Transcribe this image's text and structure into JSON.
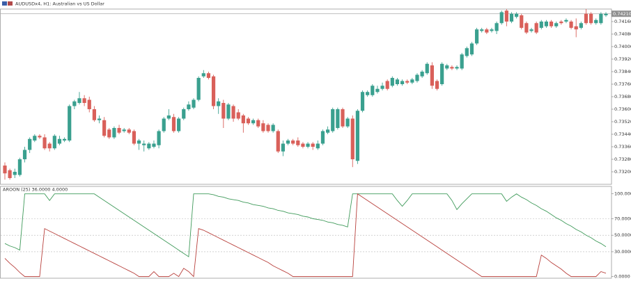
{
  "chart_data": [
    {
      "type": "candlestick",
      "title": "AUDUSDx4, H1:  Australian vs US Dollar",
      "up_color": "#3aa08f",
      "down_color": "#d9605a",
      "ylim": [
        0.7312,
        0.7424
      ],
      "yticks": [
        {
          "value": 0.7416,
          "label": "0.74160"
        },
        {
          "value": 0.7408,
          "label": "0.74080"
        },
        {
          "value": 0.74,
          "label": "0.74000"
        },
        {
          "value": 0.7392,
          "label": "0.73920"
        },
        {
          "value": 0.7384,
          "label": "0.73840"
        },
        {
          "value": 0.7376,
          "label": "0.73760"
        },
        {
          "value": 0.7368,
          "label": "0.73680"
        },
        {
          "value": 0.736,
          "label": "0.73600"
        },
        {
          "value": 0.7352,
          "label": "0.73520"
        },
        {
          "value": 0.7344,
          "label": "0.73440"
        },
        {
          "value": 0.7336,
          "label": "0.73360"
        },
        {
          "value": 0.7328,
          "label": "0.73280"
        },
        {
          "value": 0.732,
          "label": "0.73200"
        }
      ],
      "grid": false,
      "current_price": {
        "value": 0.7421,
        "label": "0.74210"
      },
      "open": [
        0.7324,
        0.7321,
        0.7318,
        0.7318,
        0.7328,
        0.7334,
        0.734,
        0.7343,
        0.7342,
        0.7338,
        0.7335,
        0.7338,
        0.734,
        0.734,
        0.7362,
        0.7364,
        0.7367,
        0.7366,
        0.736,
        0.7353,
        0.7353,
        0.7347,
        0.7342,
        0.7348,
        0.7346,
        0.7347,
        0.7346,
        0.7338,
        0.7337,
        0.7335,
        0.7336,
        0.7337,
        0.7346,
        0.7354,
        0.7355,
        0.7346,
        0.7354,
        0.736,
        0.7361,
        0.7366,
        0.7381,
        0.7383,
        0.7381,
        0.7362,
        0.7364,
        0.7354,
        0.7362,
        0.7358,
        0.7356,
        0.7354,
        0.7351,
        0.7353,
        0.7351,
        0.735,
        0.7346,
        0.7346,
        0.7333,
        0.7338,
        0.734,
        0.734,
        0.7338,
        0.7336,
        0.7338,
        0.7335,
        0.7338,
        0.7345,
        0.7346,
        0.7348,
        0.736,
        0.7349,
        0.7354,
        0.7327,
        0.7359,
        0.7369,
        0.7369,
        0.7371,
        0.7373,
        0.7378,
        0.7375,
        0.7376,
        0.7376,
        0.7378,
        0.7377,
        0.7378,
        0.7381,
        0.7383,
        0.7388,
        0.7378,
        0.7376,
        0.7386,
        0.7387,
        0.7386,
        0.7386,
        0.7394,
        0.7395,
        0.7402,
        0.741,
        0.7411,
        0.741,
        0.741,
        0.7415,
        0.7423,
        0.7416,
        0.7419,
        0.742,
        0.7415,
        0.741,
        0.7415,
        0.7412,
        0.7413,
        0.7416,
        0.7413,
        0.7416,
        0.7416,
        0.7416,
        0.7413,
        0.7412,
        0.7421,
        0.7421,
        0.7415,
        0.7415,
        0.742
      ],
      "high": [
        0.7326,
        0.7322,
        0.7322,
        0.7329,
        0.7336,
        0.7342,
        0.7344,
        0.7344,
        0.7344,
        0.7339,
        0.7344,
        0.7343,
        0.7342,
        0.7363,
        0.7366,
        0.7371,
        0.7369,
        0.7368,
        0.7362,
        0.7356,
        0.7355,
        0.7348,
        0.7349,
        0.735,
        0.7348,
        0.7348,
        0.7347,
        0.7341,
        0.734,
        0.7339,
        0.734,
        0.7347,
        0.7355,
        0.736,
        0.7357,
        0.7355,
        0.7361,
        0.7365,
        0.7367,
        0.7381,
        0.7385,
        0.7384,
        0.7382,
        0.7367,
        0.7366,
        0.7364,
        0.7363,
        0.736,
        0.7357,
        0.7355,
        0.7354,
        0.7354,
        0.7353,
        0.7351,
        0.7351,
        0.7347,
        0.734,
        0.7341,
        0.7341,
        0.7342,
        0.7339,
        0.7339,
        0.7339,
        0.734,
        0.7347,
        0.7349,
        0.7361,
        0.7361,
        0.7361,
        0.7355,
        0.7356,
        0.736,
        0.7372,
        0.7372,
        0.7376,
        0.7375,
        0.7377,
        0.7379,
        0.7381,
        0.738,
        0.7379,
        0.7379,
        0.738,
        0.7383,
        0.7385,
        0.739,
        0.739,
        0.7379,
        0.739,
        0.7389,
        0.7388,
        0.7388,
        0.7396,
        0.74,
        0.7403,
        0.7412,
        0.7412,
        0.7412,
        0.7412,
        0.7416,
        0.7423,
        0.7424,
        0.7422,
        0.7422,
        0.7421,
        0.7416,
        0.7412,
        0.7416,
        0.7417,
        0.7417,
        0.7417,
        0.7416,
        0.7417,
        0.7418,
        0.7417,
        0.7418,
        0.7416,
        0.7424,
        0.7422,
        0.7418,
        0.7422,
        0.7422
      ],
      "low": [
        0.7315,
        0.7315,
        0.7316,
        0.7317,
        0.7326,
        0.7332,
        0.7339,
        0.7341,
        0.7334,
        0.7333,
        0.7334,
        0.7337,
        0.7339,
        0.7339,
        0.736,
        0.7363,
        0.7362,
        0.7358,
        0.7352,
        0.7351,
        0.7342,
        0.7341,
        0.7341,
        0.7344,
        0.7345,
        0.7344,
        0.7337,
        0.7334,
        0.7333,
        0.7334,
        0.7335,
        0.7335,
        0.7345,
        0.7353,
        0.7345,
        0.7345,
        0.7353,
        0.7359,
        0.736,
        0.7365,
        0.738,
        0.7379,
        0.736,
        0.7357,
        0.7348,
        0.7353,
        0.7352,
        0.7353,
        0.7345,
        0.735,
        0.735,
        0.7348,
        0.7345,
        0.7345,
        0.7345,
        0.7332,
        0.733,
        0.7337,
        0.7337,
        0.7336,
        0.7335,
        0.7335,
        0.7334,
        0.7334,
        0.7337,
        0.7344,
        0.7345,
        0.7347,
        0.7348,
        0.7348,
        0.7323,
        0.7325,
        0.7358,
        0.7368,
        0.7368,
        0.737,
        0.7372,
        0.7372,
        0.7374,
        0.7375,
        0.7375,
        0.7376,
        0.7376,
        0.7377,
        0.738,
        0.7382,
        0.7373,
        0.7372,
        0.7375,
        0.7385,
        0.7385,
        0.7385,
        0.7385,
        0.7393,
        0.7394,
        0.7401,
        0.7409,
        0.7408,
        0.7409,
        0.7408,
        0.7414,
        0.7413,
        0.7415,
        0.7418,
        0.7411,
        0.7408,
        0.7409,
        0.7408,
        0.7411,
        0.7412,
        0.7412,
        0.7412,
        0.7414,
        0.7415,
        0.7411,
        0.7406,
        0.7411,
        0.7414,
        0.7414,
        0.7414,
        0.7414,
        0.7419
      ],
      "close": [
        0.7319,
        0.7316,
        0.732,
        0.7328,
        0.7334,
        0.7341,
        0.7343,
        0.7342,
        0.7335,
        0.7335,
        0.7343,
        0.7341,
        0.7341,
        0.7362,
        0.7365,
        0.7367,
        0.7364,
        0.736,
        0.7353,
        0.7354,
        0.7343,
        0.7342,
        0.7348,
        0.7345,
        0.7347,
        0.7345,
        0.7338,
        0.734,
        0.7338,
        0.7338,
        0.7338,
        0.7346,
        0.7354,
        0.7356,
        0.7346,
        0.7354,
        0.736,
        0.7363,
        0.7366,
        0.738,
        0.7383,
        0.738,
        0.7362,
        0.7365,
        0.7354,
        0.7363,
        0.7354,
        0.7354,
        0.7351,
        0.7351,
        0.7353,
        0.7349,
        0.7346,
        0.7346,
        0.735,
        0.7333,
        0.7338,
        0.734,
        0.7338,
        0.7337,
        0.7336,
        0.7338,
        0.7336,
        0.7338,
        0.7346,
        0.7347,
        0.736,
        0.736,
        0.7349,
        0.7354,
        0.7328,
        0.7359,
        0.7371,
        0.7371,
        0.7375,
        0.7373,
        0.7375,
        0.7373,
        0.738,
        0.7379,
        0.7378,
        0.7377,
        0.7379,
        0.7382,
        0.7384,
        0.7389,
        0.7375,
        0.7373,
        0.7389,
        0.7388,
        0.7386,
        0.7387,
        0.7395,
        0.7399,
        0.7402,
        0.7411,
        0.7411,
        0.7409,
        0.7411,
        0.7415,
        0.7422,
        0.7416,
        0.7421,
        0.7421,
        0.7412,
        0.7409,
        0.7411,
        0.7409,
        0.7416,
        0.7416,
        0.7413,
        0.7415,
        0.7415,
        0.7417,
        0.7412,
        0.7411,
        0.7415,
        0.7415,
        0.7415,
        0.7417,
        0.7421,
        0.7421
      ]
    },
    {
      "type": "line",
      "title": "AROON (25) 36.0000 4.0000",
      "ylim": [
        -2,
        109
      ],
      "yticks": [
        {
          "value": 100,
          "label": "100.0000"
        },
        {
          "value": 70,
          "label": "70.0000"
        },
        {
          "value": 50,
          "label": "50.0000"
        },
        {
          "value": 30,
          "label": "30.0000"
        },
        {
          "value": 0,
          "label": "0.0000"
        }
      ],
      "grid": true,
      "series": [
        {
          "color": "#3f9a5a",
          "values": [
            40,
            37,
            35,
            32,
            100,
            100,
            100,
            100,
            100,
            92,
            100,
            100,
            100,
            100,
            100,
            100,
            100,
            100,
            100,
            96,
            92,
            88,
            84,
            80,
            76,
            72,
            68,
            64,
            60,
            56,
            52,
            48,
            44,
            40,
            36,
            32,
            28,
            24,
            100,
            100,
            100,
            100,
            99,
            97,
            96,
            94,
            93,
            92,
            90,
            89,
            87,
            86,
            85,
            83,
            82,
            80,
            79,
            77,
            76,
            75,
            73,
            72,
            70,
            69,
            68,
            66,
            65,
            63,
            62,
            60,
            100,
            100,
            100,
            100,
            100,
            100,
            100,
            100,
            100,
            92,
            85,
            92,
            100,
            100,
            100,
            100,
            100,
            100,
            100,
            100,
            92,
            81,
            88,
            94,
            100,
            100,
            100,
            100,
            100,
            100,
            100,
            91,
            96,
            100,
            96,
            93,
            89,
            86,
            82,
            79,
            75,
            71,
            68,
            64,
            61,
            57,
            54,
            50,
            47,
            43,
            40,
            36
          ]
        },
        {
          "color": "#b8403c",
          "values": [
            22,
            16,
            11,
            5,
            0,
            0,
            0,
            0,
            58,
            55,
            52,
            49,
            46,
            43,
            40,
            37,
            34,
            31,
            28,
            25,
            22,
            19,
            16,
            13,
            10,
            7,
            4,
            0,
            0,
            0,
            6,
            0,
            0,
            0,
            4,
            0,
            10,
            6,
            0,
            58,
            56,
            53,
            50,
            47,
            44,
            41,
            38,
            35,
            32,
            29,
            26,
            23,
            20,
            17,
            13,
            10,
            7,
            4,
            0,
            0,
            0,
            0,
            0,
            0,
            0,
            0,
            0,
            0,
            0,
            0,
            0,
            100,
            96,
            92,
            88,
            84,
            80,
            76,
            72,
            68,
            64,
            60,
            56,
            52,
            48,
            44,
            40,
            36,
            32,
            28,
            24,
            20,
            16,
            12,
            8,
            4,
            0,
            0,
            0,
            0,
            0,
            0,
            0,
            0,
            0,
            0,
            0,
            0,
            26,
            22,
            17,
            13,
            9,
            4,
            0,
            0,
            0,
            0,
            0,
            0,
            6,
            4
          ]
        }
      ]
    }
  ]
}
